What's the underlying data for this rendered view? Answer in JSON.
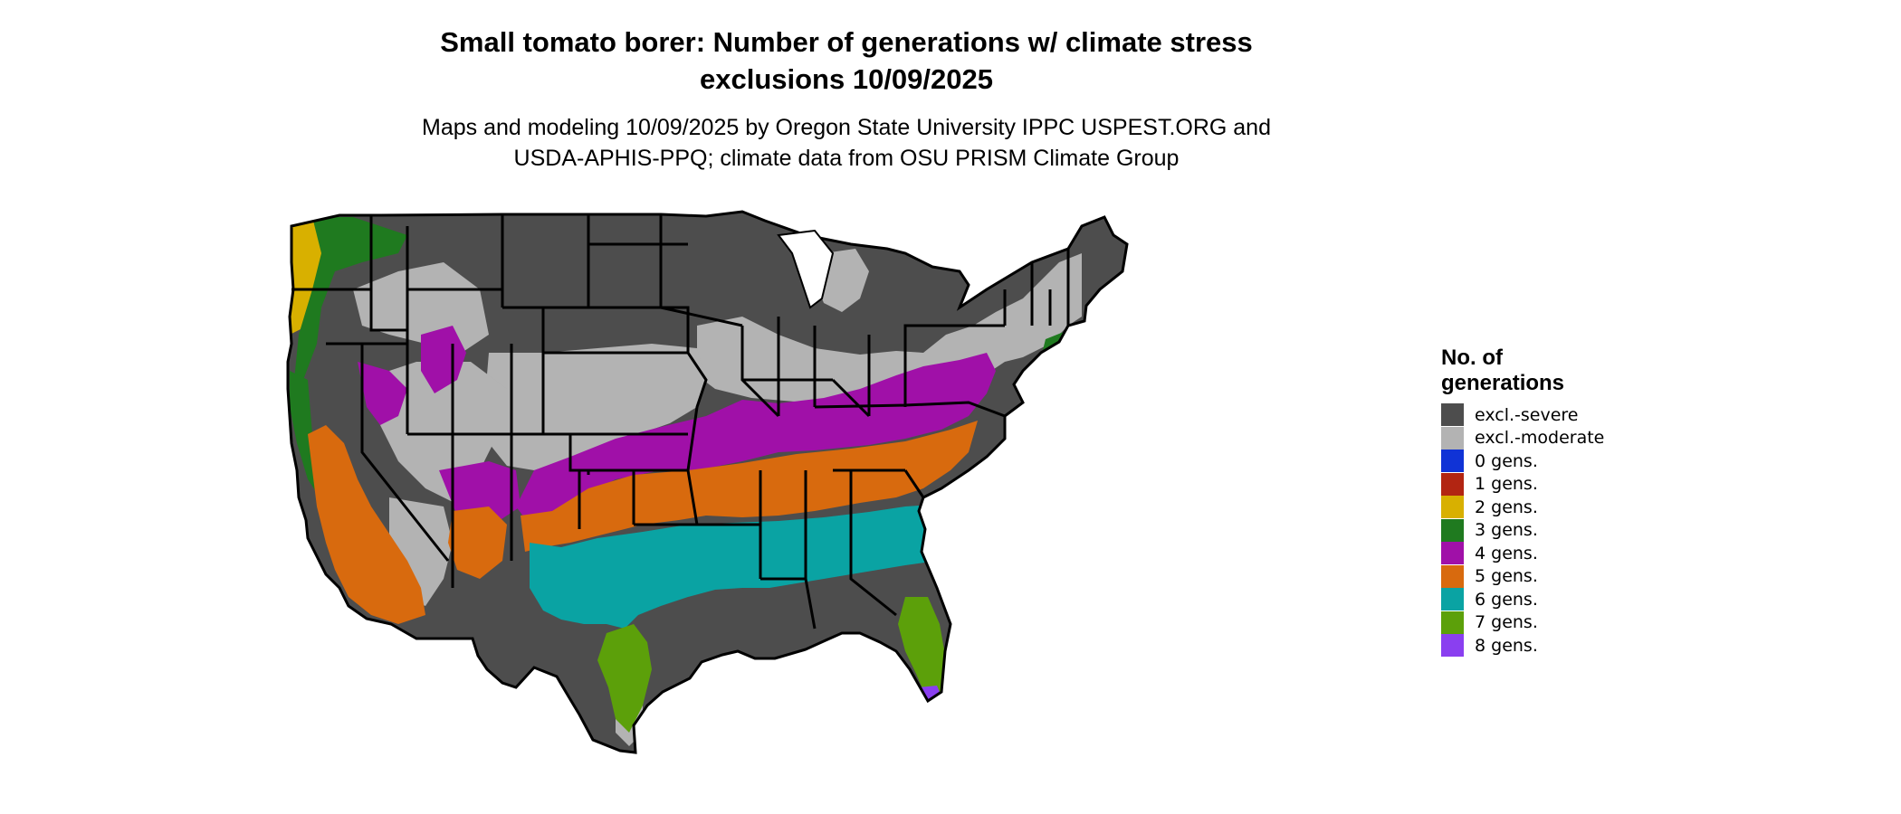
{
  "header": {
    "title_line1": "Small tomato borer: Number of generations w/ climate stress",
    "title_line2": "exclusions 10/09/2025",
    "subtitle_line1": "Maps and modeling 10/09/2025 by Oregon State University IPPC USPEST.ORG and",
    "subtitle_line2": "USDA-APHIS-PPQ; climate data from OSU PRISM Climate Group"
  },
  "legend": {
    "title_line1": "No. of",
    "title_line2": "generations",
    "items": [
      {
        "label": "excl.-severe",
        "color": "#4d4d4d"
      },
      {
        "label": "excl.-moderate",
        "color": "#b3b3b3"
      },
      {
        "label": "0 gens.",
        "color": "#1033d6"
      },
      {
        "label": "1 gens.",
        "color": "#b22512"
      },
      {
        "label": "2 gens.",
        "color": "#d8b000"
      },
      {
        "label": "3 gens.",
        "color": "#1f7a1f"
      },
      {
        "label": "4 gens.",
        "color": "#a010a8"
      },
      {
        "label": "5 gens.",
        "color": "#d86a0e"
      },
      {
        "label": "6 gens.",
        "color": "#0aa3a3"
      },
      {
        "label": "7 gens.",
        "color": "#5ca00a"
      },
      {
        "label": "8 gens.",
        "color": "#8a3ff0"
      }
    ]
  }
}
